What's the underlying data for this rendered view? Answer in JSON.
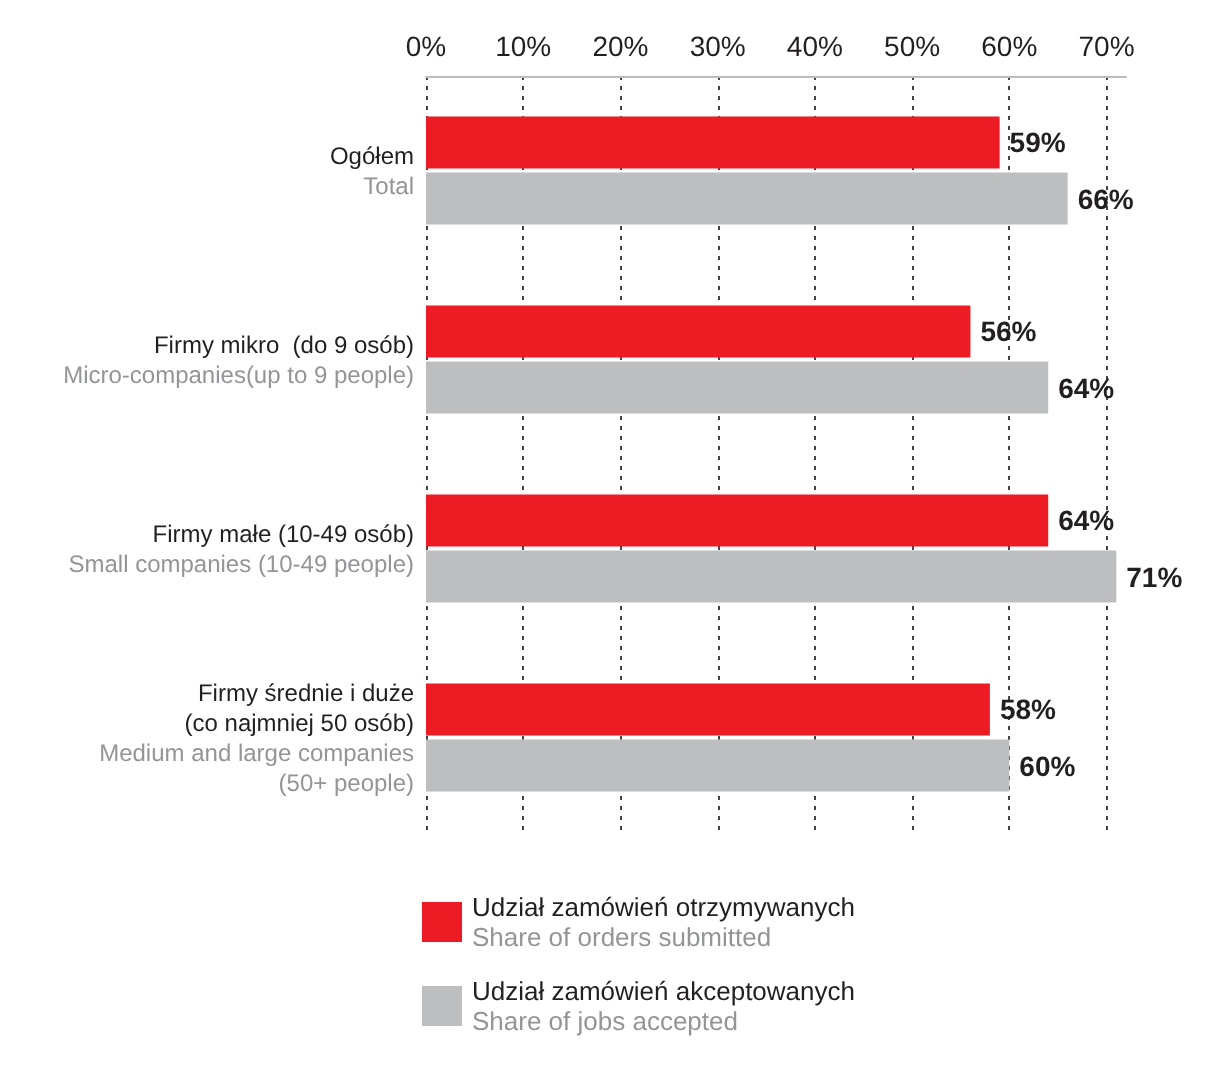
{
  "chart_data": {
    "type": "bar",
    "orientation": "horizontal",
    "categories": [
      "Ogółem\nTotal",
      "Firmy mikro  (do 9 osób)\nMicro-companies(up to 9 people)",
      "Firmy małe (10-49 osób)\nSmall companies (10-49 people)",
      "Firmy średnie i duże\n(co najmniej 50 osób)\nMedium and large companies\n(50+ people)"
    ],
    "series": [
      {
        "name": "Udział zamówień otrzymywanych\nShare of orders submitted",
        "color": "#ed1c24",
        "values": [
          59,
          56,
          64,
          58
        ],
        "value_labels": [
          "59%",
          "56%",
          "64%",
          "58%"
        ]
      },
      {
        "name": "Udział zamówień akceptowanych\nShare of jobs accepted",
        "color": "#bcbec0",
        "values": [
          66,
          64,
          71,
          60
        ],
        "value_labels": [
          "66%",
          "64%",
          "71%",
          "60%"
        ]
      }
    ],
    "xlim": [
      0,
      72
    ],
    "xticks": [
      {
        "value": 0,
        "label": "0%"
      },
      {
        "value": 10,
        "label": "10%"
      },
      {
        "value": 20,
        "label": "20%"
      },
      {
        "value": 30,
        "label": "30%"
      },
      {
        "value": 40,
        "label": "40%"
      },
      {
        "value": 50,
        "label": "50%"
      },
      {
        "value": 60,
        "label": "60%"
      },
      {
        "value": 70,
        "label": "70%"
      }
    ],
    "grid": "x",
    "legend": "bottom left"
  }
}
